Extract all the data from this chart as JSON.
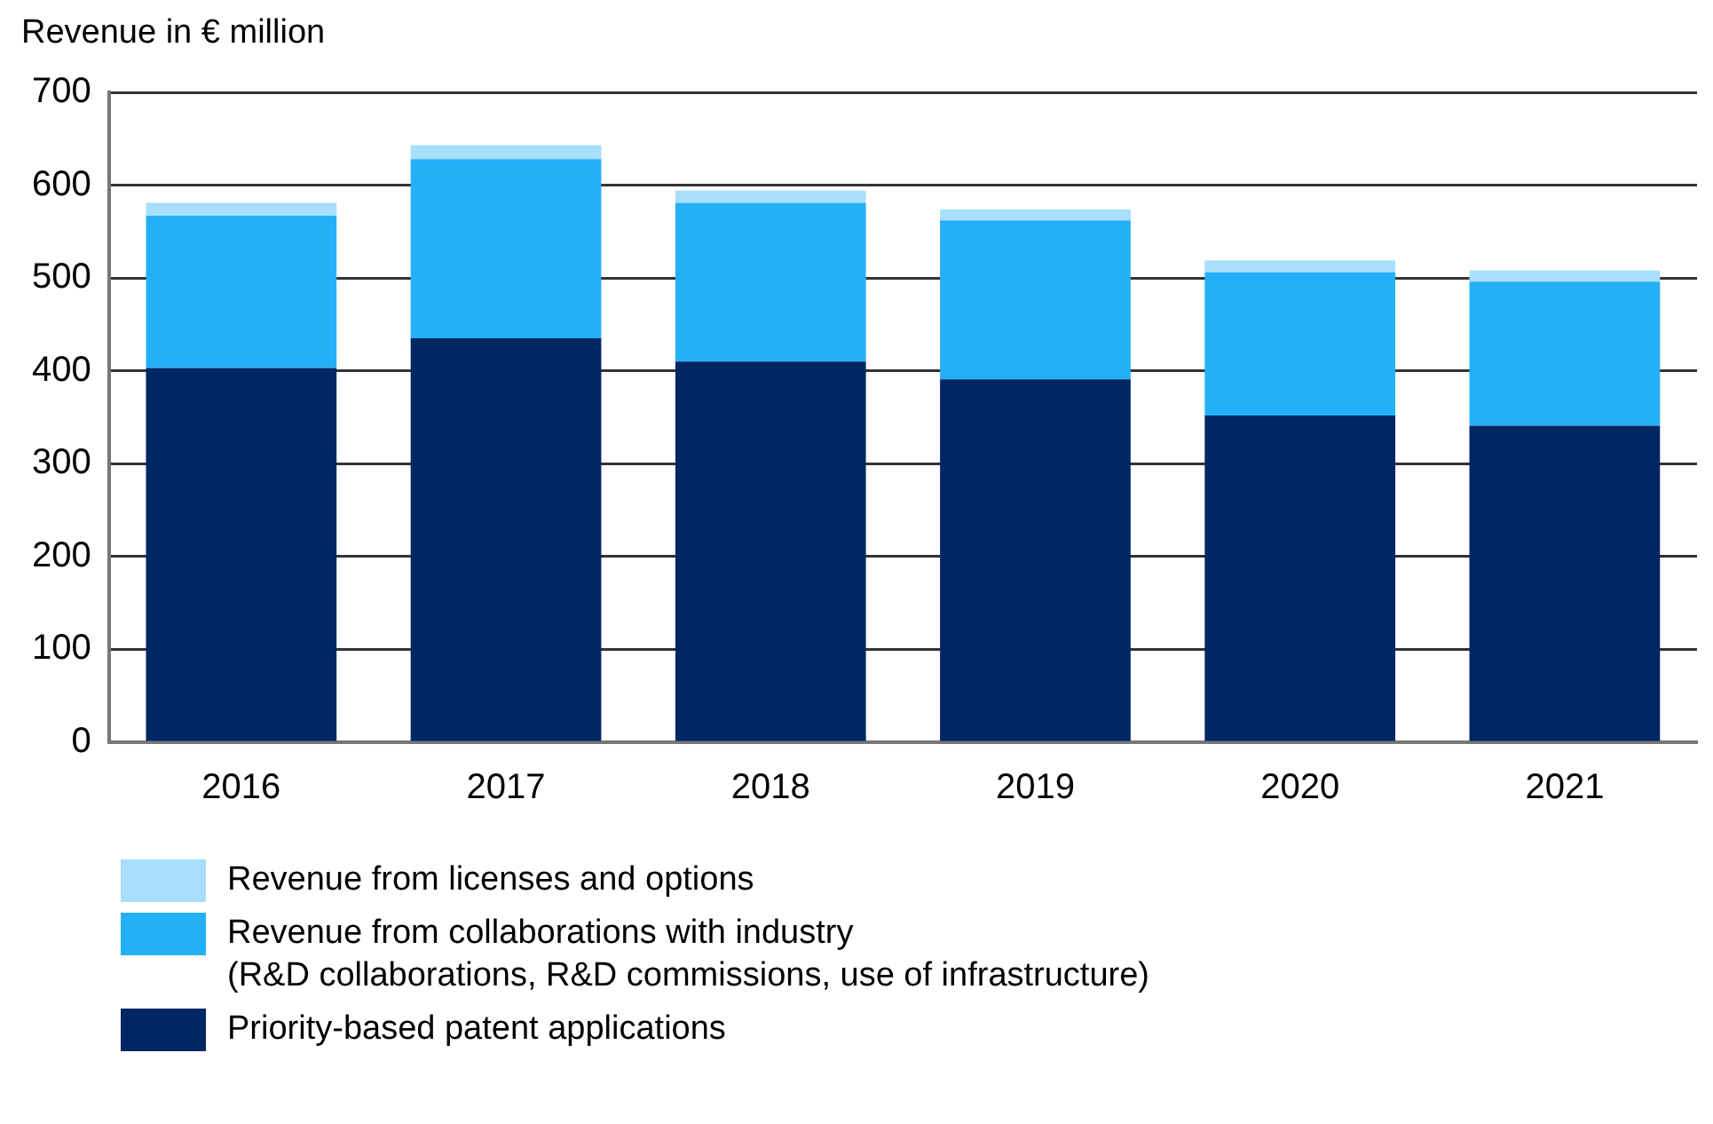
{
  "chart_data": {
    "type": "bar",
    "stacked": true,
    "ylabel": "Revenue in € million",
    "categories": [
      "2016",
      "2017",
      "2018",
      "2019",
      "2020",
      "2021"
    ],
    "series": [
      {
        "name": "Priority-based patent applications",
        "color": "#002663",
        "values": [
          403,
          435,
          410,
          391,
          352,
          341
        ]
      },
      {
        "name": "Revenue from collaborations with industry\n(R&D collaborations, R&D commissions, use of infrastructure)",
        "color": "#23b0f7",
        "values": [
          164,
          193,
          171,
          171,
          154,
          155
        ]
      },
      {
        "name": "Revenue from licenses and options",
        "color": "#a8dffc",
        "values": [
          14,
          15,
          13,
          12,
          13,
          12
        ]
      }
    ],
    "ylim": [
      0,
      700
    ],
    "yticks": [
      0,
      100,
      200,
      300,
      400,
      500,
      600,
      700
    ],
    "grid": "y",
    "legend": "bottom"
  }
}
